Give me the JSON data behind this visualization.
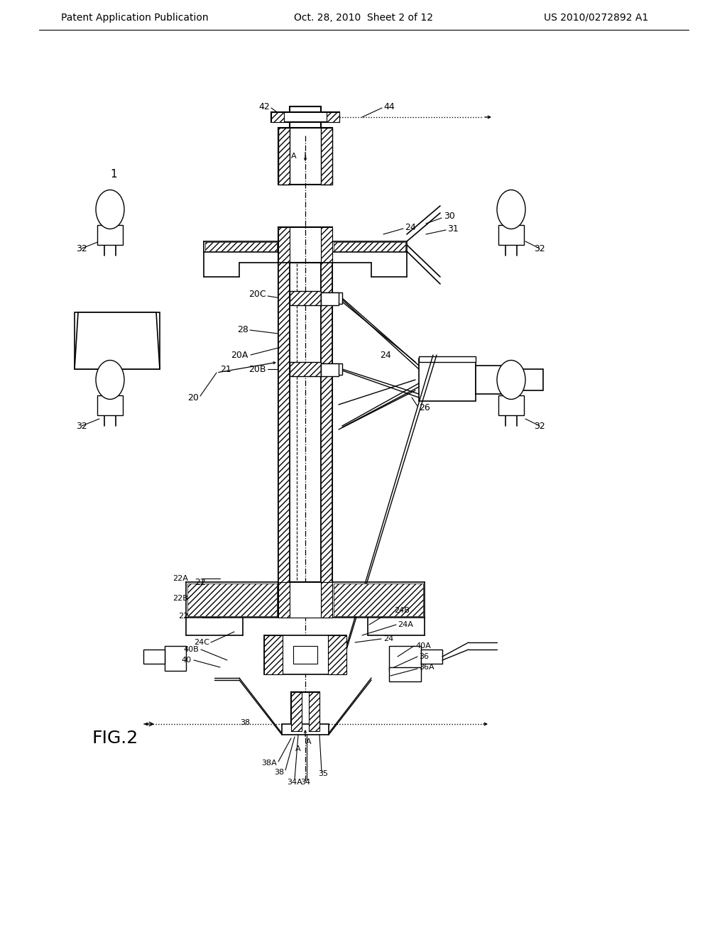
{
  "header_left": "Patent Application Publication",
  "header_mid": "Oct. 28, 2010  Sheet 2 of 12",
  "header_right": "US 2010/0272892 A1",
  "fig_label": "FIG.2",
  "bg_color": "#ffffff",
  "lc": "#000000"
}
